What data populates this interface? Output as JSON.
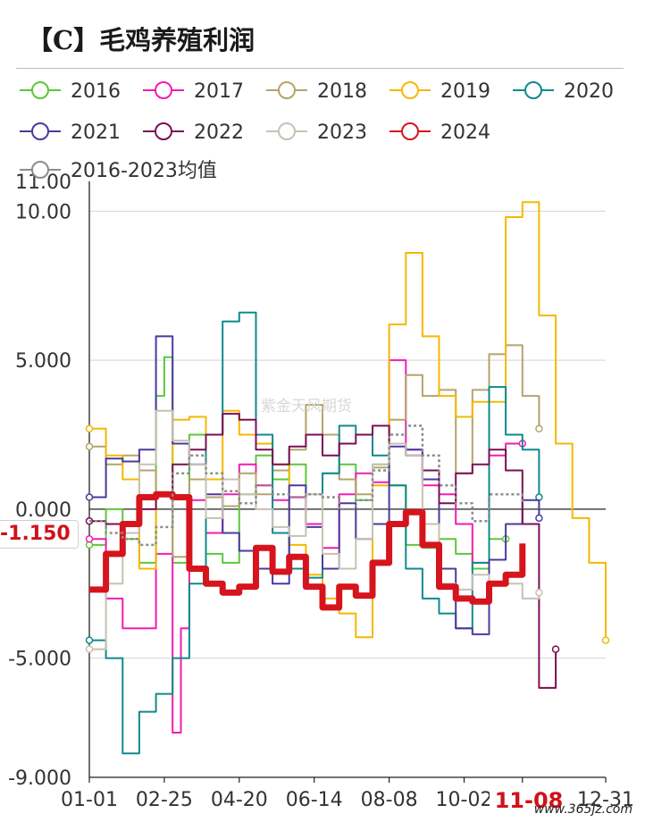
{
  "page": {
    "title": "【C】毛鸡养殖利润",
    "watermark": "紫金天风期货",
    "corner_mark": "www.365jz.com"
  },
  "chart_data": {
    "type": "line",
    "x_ticks": [
      "01-01",
      "02-25",
      "04-20",
      "06-14",
      "08-08",
      "10-02",
      "11-08",
      "12-31"
    ],
    "y_ticks": [
      "10.00",
      "5.000",
      "0.000",
      "-5.000",
      "-9.000"
    ],
    "y_top_label": "11.00",
    "ylim": [
      -9,
      11
    ],
    "grid": true,
    "legend_position": "top",
    "current_value_label": "-1.150",
    "current_date_label": "11-08",
    "series": [
      {
        "name": "2016",
        "color": "#5cc73a",
        "width": 2,
        "dash": "",
        "points": [
          [
            0,
            -1.2
          ],
          [
            2,
            0.0
          ],
          [
            4,
            -1.0
          ],
          [
            6,
            -1.8
          ],
          [
            8,
            3.8
          ],
          [
            9,
            5.1
          ],
          [
            10,
            -1.8
          ],
          [
            12,
            2.5
          ],
          [
            14,
            -1.5
          ],
          [
            16,
            -1.8
          ],
          [
            18,
            0.5
          ],
          [
            20,
            1.8
          ],
          [
            22,
            1.0
          ],
          [
            24,
            1.5
          ],
          [
            26,
            -0.5
          ],
          [
            28,
            1.2
          ],
          [
            30,
            1.5
          ],
          [
            32,
            0.3
          ],
          [
            34,
            1.5
          ],
          [
            36,
            0.8
          ],
          [
            38,
            -1.2
          ],
          [
            40,
            -1.3
          ],
          [
            42,
            -1.0
          ],
          [
            44,
            -1.5
          ],
          [
            46,
            -2.0
          ],
          [
            48,
            -1.0
          ],
          [
            50,
            -1.0
          ]
        ]
      },
      {
        "name": "2017",
        "color": "#f21cb1",
        "width": 2,
        "dash": "",
        "points": [
          [
            0,
            -1.0
          ],
          [
            2,
            -3.0
          ],
          [
            4,
            -4.0
          ],
          [
            6,
            -4.0
          ],
          [
            8,
            -1.5
          ],
          [
            10,
            -7.5
          ],
          [
            11,
            -4.0
          ],
          [
            12,
            0.3
          ],
          [
            14,
            -0.8
          ],
          [
            16,
            0.5
          ],
          [
            18,
            1.5
          ],
          [
            20,
            0.8
          ],
          [
            22,
            0.3
          ],
          [
            24,
            0.4
          ],
          [
            26,
            -0.5
          ],
          [
            28,
            -1.3
          ],
          [
            30,
            0.5
          ],
          [
            32,
            1.2
          ],
          [
            34,
            0.9
          ],
          [
            36,
            5.0
          ],
          [
            38,
            2.0
          ],
          [
            40,
            0.8
          ],
          [
            42,
            0.5
          ],
          [
            44,
            -0.5
          ],
          [
            46,
            -1.8
          ],
          [
            48,
            1.8
          ],
          [
            50,
            2.2
          ],
          [
            52,
            2.2
          ]
        ]
      },
      {
        "name": "2018",
        "color": "#b5a36c",
        "width": 2,
        "dash": "",
        "points": [
          [
            0,
            2.1
          ],
          [
            2,
            1.5
          ],
          [
            4,
            1.8
          ],
          [
            6,
            1.3
          ],
          [
            8,
            0.5
          ],
          [
            10,
            -1.6
          ],
          [
            12,
            1.0
          ],
          [
            14,
            0.4
          ],
          [
            16,
            0.1
          ],
          [
            18,
            1.2
          ],
          [
            20,
            0.5
          ],
          [
            22,
            1.3
          ],
          [
            24,
            2.0
          ],
          [
            26,
            3.5
          ],
          [
            28,
            2.5
          ],
          [
            30,
            1.0
          ],
          [
            32,
            0.5
          ],
          [
            34,
            1.4
          ],
          [
            36,
            3.0
          ],
          [
            38,
            4.5
          ],
          [
            40,
            3.8
          ],
          [
            42,
            4.0
          ],
          [
            44,
            1.2
          ],
          [
            46,
            4.0
          ],
          [
            48,
            5.2
          ],
          [
            50,
            5.5
          ],
          [
            52,
            3.8
          ],
          [
            54,
            2.7
          ]
        ]
      },
      {
        "name": "2019",
        "color": "#f5b800",
        "width": 2,
        "dash": "",
        "points": [
          [
            0,
            2.7
          ],
          [
            2,
            1.8
          ],
          [
            4,
            1.0
          ],
          [
            6,
            -2.0
          ],
          [
            8,
            0.5
          ],
          [
            10,
            3.0
          ],
          [
            12,
            3.1
          ],
          [
            14,
            1.0
          ],
          [
            16,
            3.3
          ],
          [
            18,
            2.5
          ],
          [
            20,
            2.2
          ],
          [
            22,
            1.5
          ],
          [
            24,
            -1.2
          ],
          [
            26,
            -2.2
          ],
          [
            28,
            -3.0
          ],
          [
            30,
            -3.5
          ],
          [
            32,
            -4.3
          ],
          [
            34,
            0.8
          ],
          [
            36,
            6.2
          ],
          [
            38,
            8.6
          ],
          [
            40,
            5.8
          ],
          [
            42,
            3.8
          ],
          [
            44,
            3.1
          ],
          [
            46,
            3.6
          ],
          [
            48,
            3.6
          ],
          [
            50,
            9.8
          ],
          [
            52,
            10.3
          ],
          [
            54,
            6.5
          ],
          [
            56,
            2.2
          ],
          [
            58,
            -0.3
          ],
          [
            60,
            -1.8
          ],
          [
            62,
            -4.4
          ]
        ]
      },
      {
        "name": "2020",
        "color": "#0f8a8c",
        "width": 2,
        "dash": "",
        "points": [
          [
            0,
            -4.4
          ],
          [
            2,
            -5.0
          ],
          [
            4,
            -8.2
          ],
          [
            6,
            -6.8
          ],
          [
            8,
            -6.2
          ],
          [
            10,
            -5.0
          ],
          [
            12,
            -2.5
          ],
          [
            14,
            2.5
          ],
          [
            16,
            6.3
          ],
          [
            18,
            6.6
          ],
          [
            20,
            2.5
          ],
          [
            22,
            -0.8
          ],
          [
            24,
            -2.0
          ],
          [
            26,
            -2.3
          ],
          [
            28,
            1.2
          ],
          [
            30,
            2.8
          ],
          [
            32,
            2.5
          ],
          [
            34,
            1.8
          ],
          [
            36,
            0.8
          ],
          [
            38,
            -2.0
          ],
          [
            40,
            -3.0
          ],
          [
            42,
            -3.5
          ],
          [
            44,
            -4.0
          ],
          [
            46,
            -1.8
          ],
          [
            48,
            4.1
          ],
          [
            50,
            2.5
          ],
          [
            52,
            2.0
          ],
          [
            54,
            0.4
          ]
        ]
      },
      {
        "name": "2021",
        "color": "#4a3a9e",
        "width": 2,
        "dash": "",
        "points": [
          [
            0,
            0.4
          ],
          [
            2,
            1.7
          ],
          [
            4,
            1.6
          ],
          [
            6,
            2.0
          ],
          [
            8,
            5.8
          ],
          [
            10,
            2.2
          ],
          [
            12,
            1.5
          ],
          [
            14,
            0.5
          ],
          [
            16,
            -0.8
          ],
          [
            18,
            -1.4
          ],
          [
            20,
            -2.0
          ],
          [
            22,
            -2.5
          ],
          [
            24,
            0.8
          ],
          [
            26,
            -0.6
          ],
          [
            28,
            -2.0
          ],
          [
            30,
            0.2
          ],
          [
            32,
            -1.0
          ],
          [
            34,
            -0.5
          ],
          [
            36,
            2.1
          ],
          [
            38,
            2.0
          ],
          [
            40,
            1.0
          ],
          [
            42,
            -2.0
          ],
          [
            44,
            -4.0
          ],
          [
            46,
            -4.2
          ],
          [
            48,
            -1.7
          ],
          [
            50,
            -0.5
          ],
          [
            52,
            0.3
          ],
          [
            54,
            -0.3
          ]
        ]
      },
      {
        "name": "2022",
        "color": "#7a0f54",
        "width": 2,
        "dash": "",
        "points": [
          [
            0,
            -0.4
          ],
          [
            2,
            -0.5
          ],
          [
            4,
            -0.8
          ],
          [
            6,
            0.0
          ],
          [
            8,
            0.5
          ],
          [
            10,
            1.5
          ],
          [
            12,
            2.0
          ],
          [
            14,
            2.5
          ],
          [
            16,
            3.2
          ],
          [
            18,
            3.0
          ],
          [
            20,
            2.0
          ],
          [
            22,
            1.5
          ],
          [
            24,
            2.1
          ],
          [
            26,
            2.5
          ],
          [
            28,
            1.8
          ],
          [
            30,
            2.2
          ],
          [
            32,
            2.5
          ],
          [
            34,
            2.8
          ],
          [
            36,
            2.2
          ],
          [
            38,
            1.8
          ],
          [
            40,
            1.3
          ],
          [
            42,
            0.2
          ],
          [
            44,
            1.2
          ],
          [
            46,
            1.5
          ],
          [
            48,
            2.0
          ],
          [
            50,
            1.3
          ],
          [
            52,
            -0.5
          ],
          [
            54,
            -6.0
          ],
          [
            56,
            -4.7
          ]
        ]
      },
      {
        "name": "2023",
        "color": "#c8c1b2",
        "width": 2,
        "dash": "",
        "points": [
          [
            0,
            -4.7
          ],
          [
            2,
            -2.5
          ],
          [
            4,
            -0.8
          ],
          [
            6,
            1.5
          ],
          [
            8,
            3.3
          ],
          [
            10,
            2.3
          ],
          [
            12,
            1.5
          ],
          [
            14,
            -0.3
          ],
          [
            16,
            1.0
          ],
          [
            18,
            0.5
          ],
          [
            20,
            0.0
          ],
          [
            22,
            -0.6
          ],
          [
            24,
            -0.9
          ],
          [
            26,
            0.5
          ],
          [
            28,
            -1.5
          ],
          [
            30,
            -2.0
          ],
          [
            32,
            -1.0
          ],
          [
            34,
            1.5
          ],
          [
            36,
            2.2
          ],
          [
            38,
            1.8
          ],
          [
            40,
            -0.5
          ],
          [
            42,
            -2.5
          ],
          [
            44,
            -2.7
          ],
          [
            46,
            -2.2
          ],
          [
            48,
            -2.5
          ],
          [
            50,
            -2.5
          ],
          [
            52,
            -3.0
          ],
          [
            54,
            -2.8
          ]
        ]
      },
      {
        "name": "2024",
        "color": "#d6141d",
        "width": 7,
        "dash": "",
        "points": [
          [
            0,
            -2.7
          ],
          [
            2,
            -1.5
          ],
          [
            4,
            -0.5
          ],
          [
            6,
            0.4
          ],
          [
            8,
            0.5
          ],
          [
            10,
            0.4
          ],
          [
            12,
            -2.0
          ],
          [
            14,
            -2.5
          ],
          [
            16,
            -2.8
          ],
          [
            18,
            -2.6
          ],
          [
            20,
            -1.3
          ],
          [
            22,
            -2.1
          ],
          [
            24,
            -1.6
          ],
          [
            26,
            -2.6
          ],
          [
            28,
            -3.3
          ],
          [
            30,
            -2.6
          ],
          [
            32,
            -2.9
          ],
          [
            34,
            -1.8
          ],
          [
            36,
            -0.5
          ],
          [
            38,
            -0.1
          ],
          [
            40,
            -1.2
          ],
          [
            42,
            -2.6
          ],
          [
            44,
            -3.0
          ],
          [
            46,
            -3.1
          ],
          [
            48,
            -2.5
          ],
          [
            50,
            -2.2
          ],
          [
            52,
            -1.15
          ]
        ]
      },
      {
        "name": "2016-2023均值",
        "color": "#8c8c8c",
        "width": 2.5,
        "dash": "3,3",
        "points": [
          [
            0,
            -0.4
          ],
          [
            2,
            -0.8
          ],
          [
            4,
            -1.0
          ],
          [
            6,
            -1.2
          ],
          [
            8,
            -0.6
          ],
          [
            10,
            1.2
          ],
          [
            12,
            1.8
          ],
          [
            14,
            1.2
          ],
          [
            16,
            0.6
          ],
          [
            18,
            0.2
          ],
          [
            20,
            0.8
          ],
          [
            22,
            0.5
          ],
          [
            24,
            0.4
          ],
          [
            26,
            0.5
          ],
          [
            28,
            0.4
          ],
          [
            30,
            0.0
          ],
          [
            32,
            0.3
          ],
          [
            34,
            1.3
          ],
          [
            36,
            2.5
          ],
          [
            38,
            2.8
          ],
          [
            40,
            1.8
          ],
          [
            42,
            0.8
          ],
          [
            44,
            0.2
          ],
          [
            46,
            -0.4
          ],
          [
            48,
            0.5
          ],
          [
            50,
            0.5
          ],
          [
            52,
            0.2
          ]
        ]
      }
    ]
  }
}
